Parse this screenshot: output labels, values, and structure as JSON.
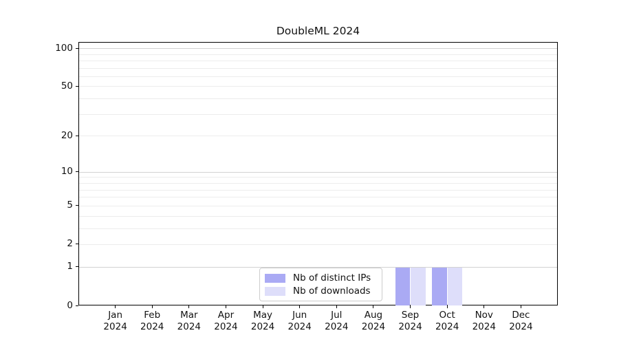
{
  "title": "DoubleML 2024",
  "chart_data": {
    "type": "bar",
    "title": "DoubleML 2024",
    "categories": [
      "Jan",
      "Feb",
      "Mar",
      "Apr",
      "May",
      "Jun",
      "Jul",
      "Aug",
      "Sep",
      "Oct",
      "Nov",
      "Dec"
    ],
    "year_label": "2024",
    "series": [
      {
        "name": "Nb of distinct IPs",
        "color": "#aaaaf4",
        "values": [
          0,
          0,
          0,
          0,
          0,
          0,
          0,
          0,
          1,
          1,
          0,
          0
        ]
      },
      {
        "name": "Nb of downloads",
        "color": "#dedefa",
        "values": [
          0,
          0,
          0,
          0,
          0,
          0,
          0,
          0,
          1,
          1,
          0,
          0
        ]
      }
    ],
    "yscale": "log1p",
    "ylim": [
      0,
      112
    ],
    "yticks": [
      0,
      1,
      2,
      5,
      10,
      20,
      50,
      100
    ],
    "grid_major_values": [
      1,
      10,
      100
    ],
    "grid_minor_values": [
      2,
      3,
      4,
      5,
      6,
      7,
      8,
      9,
      20,
      30,
      40,
      50,
      60,
      70,
      80,
      90
    ],
    "legend_position": "lower center",
    "grid": true
  },
  "colors": {
    "axis": "#000000",
    "grid_major": "#d2d2d2",
    "grid_minor": "#ececec",
    "background": "#ffffff",
    "text": "#111111"
  }
}
